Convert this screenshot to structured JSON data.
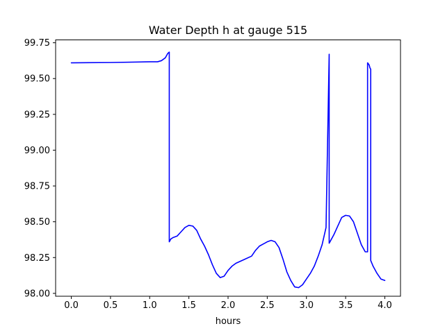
{
  "chart_data": {
    "type": "line",
    "title": "Water Depth h at gauge 515",
    "xlabel": "hours",
    "ylabel": "",
    "xlim": [
      -0.2,
      4.2
    ],
    "ylim": [
      97.98,
      99.77
    ],
    "xticks": [
      0.0,
      0.5,
      1.0,
      1.5,
      2.0,
      2.5,
      3.0,
      3.5,
      4.0
    ],
    "xtick_labels": [
      "0.0",
      "0.5",
      "1.0",
      "1.5",
      "2.0",
      "2.5",
      "3.0",
      "3.5",
      "4.0"
    ],
    "yticks": [
      98.0,
      98.25,
      98.5,
      98.75,
      99.0,
      99.25,
      99.5,
      99.75
    ],
    "ytick_labels": [
      "98.00",
      "98.25",
      "98.50",
      "98.75",
      "99.00",
      "99.25",
      "99.50",
      "99.75"
    ],
    "grid": false,
    "series": [
      {
        "color": "#0000ff",
        "x": [
          0.0,
          0.5,
          1.0,
          1.1,
          1.15,
          1.2,
          1.23,
          1.25,
          1.25,
          1.27,
          1.3,
          1.35,
          1.4,
          1.45,
          1.5,
          1.55,
          1.6,
          1.65,
          1.7,
          1.75,
          1.8,
          1.85,
          1.9,
          1.95,
          2.0,
          2.05,
          2.1,
          2.2,
          2.3,
          2.35,
          2.4,
          2.5,
          2.55,
          2.6,
          2.65,
          2.7,
          2.75,
          2.8,
          2.85,
          2.9,
          2.95,
          3.0,
          3.05,
          3.1,
          3.15,
          3.2,
          3.25,
          3.29,
          3.29,
          3.3,
          3.3,
          3.35,
          3.4,
          3.45,
          3.5,
          3.55,
          3.6,
          3.65,
          3.7,
          3.75,
          3.78,
          3.78,
          3.8,
          3.81,
          3.82,
          3.82,
          3.85,
          3.9,
          3.95,
          4.0
        ],
        "y": [
          99.61,
          99.612,
          99.617,
          99.617,
          99.625,
          99.645,
          99.675,
          99.685,
          98.36,
          98.38,
          98.39,
          98.4,
          98.43,
          98.46,
          98.475,
          98.47,
          98.44,
          98.38,
          98.33,
          98.27,
          98.2,
          98.14,
          98.11,
          98.12,
          98.16,
          98.19,
          98.21,
          98.235,
          98.26,
          98.3,
          98.33,
          98.36,
          98.37,
          98.36,
          98.32,
          98.24,
          98.15,
          98.09,
          98.045,
          98.04,
          98.06,
          98.1,
          98.14,
          98.19,
          98.26,
          98.34,
          98.46,
          99.67,
          98.35,
          98.36,
          98.36,
          98.41,
          98.47,
          98.53,
          98.545,
          98.54,
          98.5,
          98.42,
          98.34,
          98.29,
          98.29,
          99.61,
          99.595,
          99.575,
          99.565,
          98.23,
          98.19,
          98.14,
          98.1,
          98.09
        ]
      }
    ]
  }
}
